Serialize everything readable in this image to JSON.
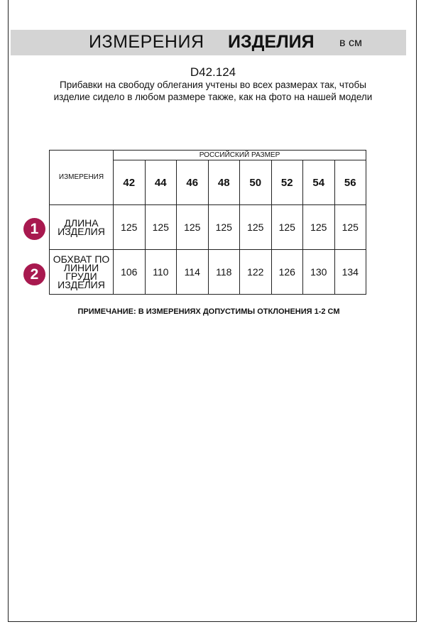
{
  "header": {
    "title_regular": "ИЗМЕРЕНИЯ",
    "title_bold": "ИЗДЕЛИЯ",
    "units": "в см"
  },
  "product_code": "D42.124",
  "description": "Прибавки на свободу облегания учтены во всех размерах так, чтобы изделие сидело в любом размере также, как на фото на нашей модели",
  "table": {
    "measurements_header": "ИЗМЕРЕНИЯ",
    "size_header": "РОССИЙСКИЙ РАЗМЕР",
    "sizes": [
      "42",
      "44",
      "46",
      "48",
      "50",
      "52",
      "54",
      "56"
    ],
    "rows": [
      {
        "badge": "1",
        "label": "ДЛИНА ИЗДЕЛИЯ",
        "values": [
          "125",
          "125",
          "125",
          "125",
          "125",
          "125",
          "125",
          "125"
        ]
      },
      {
        "badge": "2",
        "label": "ОБХВАТ ПО ЛИНИИ ГРУДИ ИЗДЕЛИЯ",
        "values": [
          "106",
          "110",
          "114",
          "118",
          "122",
          "126",
          "130",
          "134"
        ]
      }
    ]
  },
  "note": "ПРИМЕЧАНИЕ: В ИЗМЕРЕНИЯХ ДОПУСТИМЫ ОТКЛОНЕНИЯ 1-2 СМ",
  "colors": {
    "badge": "#a8194f",
    "header_bar": "#d4d4d4"
  }
}
